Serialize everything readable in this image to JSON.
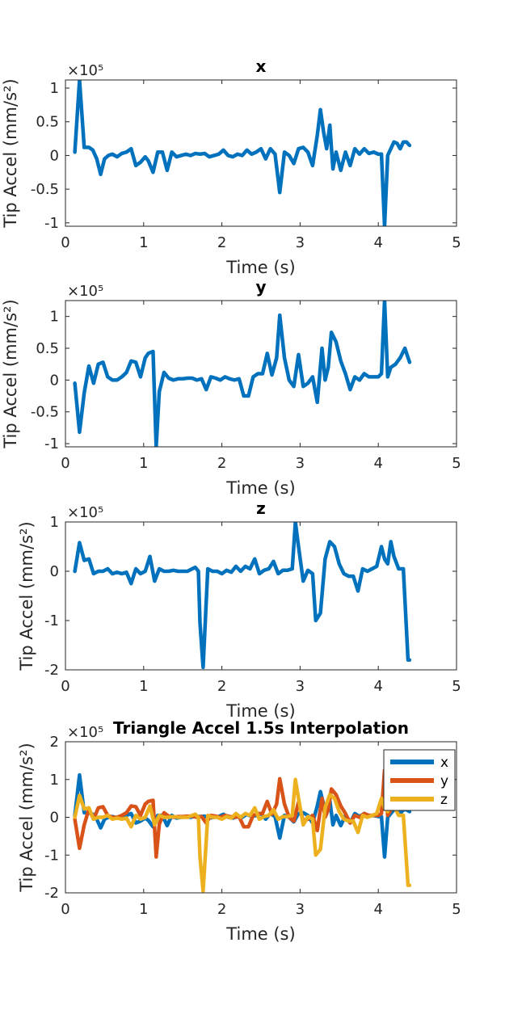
{
  "chart_data": [
    {
      "type": "line",
      "title": "x",
      "xlabel": "Time (s)",
      "ylabel": "Tip Accel (mm/s²)",
      "exponent_label": "×10⁵",
      "xlim": [
        0,
        5
      ],
      "ylim": [
        -1.05,
        1.12
      ],
      "xticks": [
        0,
        1,
        2,
        3,
        4,
        5
      ],
      "xtick_labels": [
        "0",
        "1",
        "2",
        "3",
        "4",
        "5"
      ],
      "yticks": [
        -1,
        -0.5,
        0,
        0.5,
        1
      ],
      "ytick_labels": [
        "-1",
        "-0.5",
        "0",
        "0.5",
        "1"
      ],
      "grid": false,
      "series": [
        {
          "color": "#0072BD",
          "x": [
            0.12,
            0.18,
            0.24,
            0.3,
            0.35,
            0.4,
            0.45,
            0.5,
            0.55,
            0.6,
            0.66,
            0.72,
            0.78,
            0.84,
            0.9,
            0.96,
            1.02,
            1.06,
            1.12,
            1.18,
            1.24,
            1.3,
            1.36,
            1.42,
            1.48,
            1.54,
            1.6,
            1.66,
            1.72,
            1.78,
            1.84,
            1.9,
            1.96,
            2.02,
            2.08,
            2.14,
            2.2,
            2.26,
            2.32,
            2.38,
            2.44,
            2.5,
            2.56,
            2.62,
            2.68,
            2.74,
            2.8,
            2.86,
            2.92,
            2.98,
            3.04,
            3.1,
            3.16,
            3.22,
            3.26,
            3.3,
            3.34,
            3.38,
            3.42,
            3.46,
            3.52,
            3.58,
            3.64,
            3.7,
            3.76,
            3.82,
            3.88,
            3.94,
            4.0,
            4.04,
            4.08,
            4.12,
            4.16,
            4.2,
            4.24,
            4.28,
            4.32,
            4.36,
            4.4
          ],
          "y": [
            0.05,
            1.12,
            0.12,
            0.12,
            0.08,
            -0.05,
            -0.28,
            -0.05,
            0.0,
            0.02,
            -0.02,
            0.03,
            0.05,
            0.1,
            -0.15,
            -0.1,
            -0.02,
            -0.08,
            -0.25,
            0.05,
            0.05,
            -0.22,
            0.05,
            -0.02,
            0.0,
            0.02,
            0.0,
            0.03,
            0.02,
            0.03,
            -0.02,
            0.0,
            0.02,
            0.08,
            0.0,
            -0.02,
            0.02,
            0.0,
            0.08,
            0.02,
            0.05,
            0.1,
            -0.05,
            0.1,
            0.02,
            -0.55,
            0.05,
            0.0,
            -0.12,
            0.1,
            0.12,
            0.05,
            -0.15,
            0.3,
            0.68,
            0.35,
            0.1,
            0.45,
            -0.2,
            0.05,
            -0.22,
            0.05,
            -0.15,
            0.1,
            0.02,
            0.1,
            0.03,
            0.05,
            0.02,
            0.02,
            -1.05,
            0.0,
            0.1,
            0.2,
            0.18,
            0.1,
            0.2,
            0.2,
            0.15
          ]
        }
      ]
    },
    {
      "type": "line",
      "title": "y",
      "xlabel": "Time (s)",
      "ylabel": "Tip Accel (mm/s²)",
      "exponent_label": "×10⁵",
      "xlim": [
        0,
        5
      ],
      "ylim": [
        -1.05,
        1.25
      ],
      "xticks": [
        0,
        1,
        2,
        3,
        4,
        5
      ],
      "xtick_labels": [
        "0",
        "1",
        "2",
        "3",
        "4",
        "5"
      ],
      "yticks": [
        -1,
        -0.5,
        0,
        0.5,
        1
      ],
      "ytick_labels": [
        "-1",
        "-0.5",
        "0",
        "0.5",
        "1"
      ],
      "grid": false,
      "series": [
        {
          "color": "#0072BD",
          "x": [
            0.12,
            0.18,
            0.24,
            0.3,
            0.36,
            0.42,
            0.48,
            0.54,
            0.6,
            0.66,
            0.72,
            0.78,
            0.84,
            0.9,
            0.96,
            1.02,
            1.06,
            1.12,
            1.16,
            1.2,
            1.26,
            1.32,
            1.38,
            1.44,
            1.5,
            1.56,
            1.62,
            1.68,
            1.74,
            1.8,
            1.86,
            1.92,
            1.98,
            2.04,
            2.1,
            2.16,
            2.22,
            2.28,
            2.34,
            2.4,
            2.46,
            2.52,
            2.58,
            2.64,
            2.7,
            2.74,
            2.8,
            2.86,
            2.92,
            2.98,
            3.04,
            3.1,
            3.16,
            3.22,
            3.28,
            3.32,
            3.36,
            3.4,
            3.46,
            3.52,
            3.58,
            3.64,
            3.7,
            3.76,
            3.82,
            3.88,
            3.94,
            4.0,
            4.04,
            4.08,
            4.12,
            4.16,
            4.22,
            4.28,
            4.34,
            4.4
          ],
          "y": [
            -0.05,
            -0.82,
            -0.2,
            0.22,
            -0.05,
            0.25,
            0.28,
            0.05,
            0.0,
            0.0,
            0.05,
            0.12,
            0.3,
            0.28,
            0.05,
            0.35,
            0.42,
            0.45,
            -1.05,
            -0.18,
            0.12,
            0.03,
            0.0,
            0.02,
            0.02,
            0.03,
            0.03,
            0.0,
            0.02,
            -0.15,
            0.05,
            0.03,
            0.0,
            0.05,
            0.02,
            0.0,
            0.02,
            -0.25,
            -0.25,
            0.05,
            0.1,
            0.1,
            0.42,
            0.08,
            0.35,
            1.02,
            0.35,
            0.0,
            -0.1,
            0.4,
            -0.1,
            -0.05,
            0.05,
            -0.35,
            0.5,
            0.0,
            0.2,
            0.75,
            0.6,
            0.3,
            0.1,
            -0.15,
            0.05,
            0.0,
            0.1,
            0.05,
            0.05,
            0.05,
            0.1,
            1.25,
            0.05,
            0.2,
            0.25,
            0.35,
            0.5,
            0.28
          ]
        }
      ]
    },
    {
      "type": "line",
      "title": "z",
      "xlabel": "Time (s)",
      "ylabel": "Tip Accel (mm/s²)",
      "exponent_label": "×10⁵",
      "xlim": [
        0,
        5
      ],
      "ylim": [
        -2,
        1
      ],
      "xticks": [
        0,
        1,
        2,
        3,
        4,
        5
      ],
      "xtick_labels": [
        "0",
        "1",
        "2",
        "3",
        "4",
        "5"
      ],
      "yticks": [
        -2,
        -1,
        0,
        1
      ],
      "ytick_labels": [
        "-2",
        "-1",
        "0",
        "1"
      ],
      "grid": false,
      "series": [
        {
          "color": "#0072BD",
          "x": [
            0.12,
            0.18,
            0.24,
            0.3,
            0.36,
            0.42,
            0.48,
            0.54,
            0.6,
            0.66,
            0.72,
            0.78,
            0.84,
            0.9,
            0.96,
            1.02,
            1.08,
            1.14,
            1.2,
            1.26,
            1.32,
            1.38,
            1.44,
            1.5,
            1.56,
            1.62,
            1.66,
            1.7,
            1.72,
            1.76,
            1.82,
            1.88,
            1.94,
            2.0,
            2.06,
            2.12,
            2.18,
            2.24,
            2.3,
            2.36,
            2.42,
            2.48,
            2.54,
            2.6,
            2.66,
            2.72,
            2.78,
            2.84,
            2.9,
            2.94,
            2.98,
            3.04,
            3.1,
            3.16,
            3.2,
            3.26,
            3.32,
            3.38,
            3.44,
            3.5,
            3.56,
            3.62,
            3.68,
            3.74,
            3.8,
            3.86,
            3.92,
            3.98,
            4.04,
            4.08,
            4.12,
            4.16,
            4.2,
            4.26,
            4.32,
            4.38,
            4.4
          ],
          "y": [
            0.0,
            0.58,
            0.22,
            0.25,
            -0.05,
            0.0,
            0.0,
            0.05,
            -0.05,
            -0.02,
            -0.05,
            -0.02,
            -0.25,
            0.05,
            -0.05,
            0.0,
            0.3,
            -0.2,
            0.05,
            0.0,
            0.0,
            0.02,
            0.0,
            0.0,
            0.0,
            0.05,
            0.08,
            0.0,
            -1.05,
            -1.95,
            0.05,
            0.0,
            0.0,
            -0.05,
            0.02,
            -0.02,
            0.1,
            0.0,
            0.1,
            0.05,
            0.25,
            -0.05,
            0.02,
            0.05,
            0.2,
            -0.05,
            0.02,
            0.02,
            0.05,
            1.0,
            0.5,
            -0.2,
            0.02,
            -0.05,
            -1.0,
            -0.85,
            0.25,
            0.6,
            0.5,
            0.15,
            -0.05,
            -0.1,
            -0.1,
            -0.4,
            0.05,
            0.0,
            0.05,
            0.1,
            0.5,
            0.25,
            0.15,
            0.6,
            0.3,
            0.05,
            0.05,
            -1.8,
            -1.8
          ]
        }
      ]
    },
    {
      "type": "line",
      "title": "Triangle Accel 1.5s Interpolation",
      "xlabel": "Time (s)",
      "ylabel": "Tip Accel (mm/s²)",
      "exponent_label": "×10⁵",
      "xlim": [
        0,
        5
      ],
      "ylim": [
        -2,
        2
      ],
      "xticks": [
        0,
        1,
        2,
        3,
        4,
        5
      ],
      "xtick_labels": [
        "0",
        "1",
        "2",
        "3",
        "4",
        "5"
      ],
      "yticks": [
        -2,
        -1,
        0,
        1,
        2
      ],
      "ytick_labels": [
        "-2",
        "-1",
        "0",
        "1",
        "2"
      ],
      "grid": false,
      "legend_position": "top-right",
      "series_ref": [
        0,
        1,
        2
      ],
      "series": [
        {
          "name": "x",
          "color": "#0072BD"
        },
        {
          "name": "y",
          "color": "#D95319"
        },
        {
          "name": "z",
          "color": "#EDB120"
        }
      ]
    }
  ]
}
